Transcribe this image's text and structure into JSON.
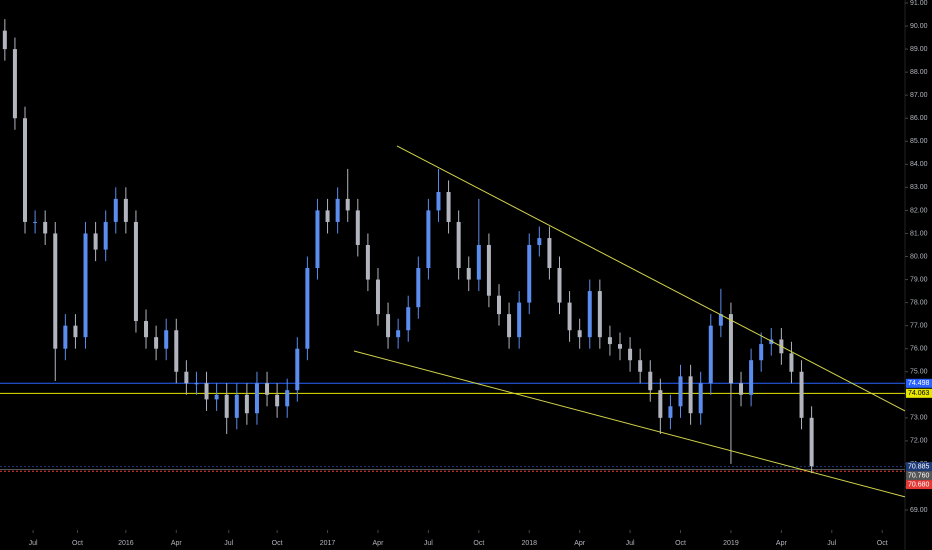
{
  "chart_data": {
    "type": "candlestick",
    "up_color": "#5b8def",
    "down_color": "#b2b5be",
    "x": [
      2015.4,
      2015.45,
      2015.5,
      2015.55,
      2015.6,
      2015.65,
      2015.7,
      2015.75,
      2015.8,
      2015.85,
      2015.9,
      2015.95,
      2016.0,
      2016.05,
      2016.1,
      2016.15,
      2016.2,
      2016.25,
      2016.3,
      2016.35,
      2016.4,
      2016.45,
      2016.5,
      2016.55,
      2016.6,
      2016.65,
      2016.7,
      2016.75,
      2016.8,
      2016.85,
      2016.9,
      2016.95,
      2017.0,
      2017.05,
      2017.1,
      2017.15,
      2017.2,
      2017.25,
      2017.3,
      2017.35,
      2017.4,
      2017.45,
      2017.5,
      2017.55,
      2017.6,
      2017.65,
      2017.7,
      2017.75,
      2017.8,
      2017.85,
      2017.9,
      2017.95,
      2018.0,
      2018.05,
      2018.1,
      2018.15,
      2018.2,
      2018.25,
      2018.3,
      2018.35,
      2018.4,
      2018.45,
      2018.5,
      2018.55,
      2018.6,
      2018.65,
      2018.7,
      2018.75,
      2018.8,
      2018.85,
      2018.9,
      2018.95,
      2019.0,
      2019.05,
      2019.1,
      2019.15,
      2019.2,
      2019.25,
      2019.3,
      2019.35,
      2019.4
    ],
    "open": [
      89.8,
      89,
      86,
      81.5,
      81.5,
      81,
      76,
      77,
      76.5,
      81,
      80.3,
      81.5,
      82.5,
      81.5,
      77.2,
      76.5,
      76,
      76.8,
      75,
      74.5,
      74.5,
      73.8,
      74,
      73,
      74,
      73.2,
      74.5,
      74,
      73.5,
      74.2,
      76,
      79.5,
      82,
      81.5,
      82.5,
      82,
      80.5,
      79,
      77.5,
      76.5,
      76.8,
      77.8,
      79.5,
      82,
      82.8,
      81.5,
      79.5,
      79,
      80.5,
      78.3,
      77.5,
      76.5,
      78,
      80.5,
      80.8,
      79.5,
      78,
      76.8,
      76.5,
      78.5,
      76.5,
      76.2,
      76,
      75.5,
      75,
      74.2,
      73,
      73.5,
      74.8,
      73.2,
      74.5,
      77,
      77.5,
      74.5,
      74,
      75.5,
      76.2,
      76.4,
      75.8,
      75,
      73
    ],
    "high": [
      90.3,
      89.5,
      86.5,
      82,
      82,
      81.5,
      77.5,
      77.5,
      81.5,
      81.5,
      82,
      83,
      83,
      82,
      77.7,
      77,
      77.3,
      77.3,
      75.5,
      75,
      75,
      74.5,
      74.5,
      74.5,
      74.5,
      75,
      75,
      74.5,
      74.7,
      76.5,
      80,
      82.5,
      82.5,
      83,
      83.8,
      82.5,
      81,
      79.5,
      78,
      77.3,
      78.3,
      80,
      82.5,
      83.8,
      83.3,
      82,
      80,
      82.5,
      81,
      78.8,
      78,
      78.5,
      81,
      81.3,
      81.3,
      80,
      78.5,
      77.3,
      79,
      79,
      77,
      76.7,
      76.5,
      76,
      75.5,
      74.7,
      74,
      75.3,
      75.3,
      75,
      77.5,
      78.6,
      78,
      75,
      76,
      76.7,
      76.9,
      76.9,
      76.3,
      75.5,
      73.5
    ],
    "low": [
      88.5,
      85.5,
      81,
      81,
      80.5,
      74.6,
      75.5,
      76,
      76,
      79.8,
      79.8,
      81,
      81,
      76.7,
      76,
      75.5,
      75.5,
      74.5,
      74,
      74,
      73.3,
      73.3,
      72.3,
      72.5,
      72.7,
      72.7,
      73.5,
      73,
      73,
      73.7,
      75.5,
      79,
      81,
      81,
      81.5,
      80,
      78.5,
      77,
      76,
      76,
      76.3,
      77.3,
      79,
      81.5,
      81,
      79,
      78.5,
      78.5,
      77.8,
      77,
      76,
      76,
      77.5,
      80,
      79,
      77.5,
      76.3,
      76,
      76,
      76,
      75.7,
      75.5,
      75,
      74.5,
      73.7,
      72.3,
      72.5,
      73,
      72.7,
      72.7,
      74,
      76.5,
      71,
      73.5,
      73.5,
      75,
      75.7,
      75.3,
      74.5,
      72.5,
      70.6
    ],
    "close": [
      89,
      86,
      81.5,
      81.5,
      81,
      76,
      77,
      76.5,
      81,
      80.3,
      81.5,
      82.5,
      81.5,
      77.2,
      76.5,
      76,
      76.8,
      75,
      74.5,
      74.5,
      73.8,
      74,
      73,
      74,
      73.2,
      74.5,
      74,
      73.5,
      74.2,
      76,
      79.5,
      82,
      81.5,
      82.5,
      82,
      80.5,
      79,
      77.5,
      76.5,
      76.8,
      77.8,
      79.5,
      82,
      82.8,
      81.5,
      79.5,
      79,
      80.5,
      78.3,
      77.5,
      76.5,
      78,
      80.5,
      80.8,
      79.5,
      78,
      76.8,
      76.5,
      78.5,
      76.5,
      76.2,
      76,
      75.5,
      75,
      74.2,
      73,
      73.5,
      74.8,
      73.2,
      74.5,
      77,
      77.5,
      74.5,
      74,
      75.5,
      76.2,
      76.4,
      75.8,
      75,
      73,
      70.9
    ],
    "xlim": [
      2015.376,
      2019.863
    ],
    "xticks": [
      {
        "value": 2015.54,
        "label": "Jul"
      },
      {
        "value": 2015.76,
        "label": "Oct"
      },
      2016,
      {
        "value": 2016.25,
        "label": "Apr"
      },
      {
        "value": 2016.51,
        "label": "Jul"
      },
      {
        "value": 2016.75,
        "label": "Oct"
      },
      2017,
      {
        "value": 2017.25,
        "label": "Apr"
      },
      {
        "value": 2017.5,
        "label": "Jul"
      },
      {
        "value": 2017.75,
        "label": "Oct"
      },
      2018,
      {
        "value": 2018.25,
        "label": "Apr"
      },
      {
        "value": 2018.5,
        "label": "Jul"
      },
      {
        "value": 2018.75,
        "label": "Oct"
      },
      2019,
      {
        "value": 2019.25,
        "label": "Apr"
      },
      {
        "value": 2019.5,
        "label": "Jul"
      },
      {
        "value": 2019.75,
        "label": "Oct"
      }
    ],
    "ylim": [
      68.35,
      91.13
    ],
    "yticks": [
      {
        "value": 69,
        "label": "69.00"
      },
      {
        "value": 70,
        "label": "70.00"
      },
      {
        "value": 71,
        "label": "71.00"
      },
      {
        "value": 72,
        "label": "72.00"
      },
      {
        "value": 73,
        "label": "73.00"
      },
      {
        "value": 74,
        "label": "74.00"
      },
      {
        "value": 75,
        "label": "75.00"
      },
      {
        "value": 76,
        "label": "76.00"
      },
      {
        "value": 77,
        "label": "77.00"
      },
      {
        "value": 78,
        "label": "78.00"
      },
      {
        "value": 79,
        "label": "79.00"
      },
      {
        "value": 80,
        "label": "80.00"
      },
      {
        "value": 81,
        "label": "81.00"
      },
      {
        "value": 82,
        "label": "82.00"
      },
      {
        "value": 83,
        "label": "83.00"
      },
      {
        "value": 84,
        "label": "84.00"
      },
      {
        "value": 85,
        "label": "85.00"
      },
      {
        "value": 86,
        "label": "86.00"
      },
      {
        "value": 87,
        "label": "87.00"
      },
      {
        "value": 88,
        "label": "88.00"
      },
      {
        "value": 89,
        "label": "89.00"
      },
      {
        "value": 90,
        "label": "90.00"
      },
      {
        "value": 91,
        "label": "91.00"
      }
    ],
    "hlines": [
      {
        "value": 74.498,
        "label": "74.498",
        "color": "#2962ff",
        "dashed": false,
        "text_color": "#ffffff"
      },
      {
        "value": 74.063,
        "label": "74.063",
        "color": "#e6e600",
        "dashed": false,
        "text_color": "#000000"
      },
      {
        "value": 70.885,
        "label": "70.885",
        "color": "#1e3a78",
        "dashed": true,
        "text_color": "#ffffff"
      },
      {
        "value": 70.76,
        "label": "70.760",
        "color": "#555555",
        "dashed": false,
        "text_color": "#ffffff"
      },
      {
        "value": 70.68,
        "label": "70.680",
        "color": "#e53935",
        "dashed": true,
        "text_color": "#ffffff"
      }
    ],
    "trendlines": [
      {
        "x": [
          2017.344,
          2019.863
        ],
        "y": [
          84.8,
          73.3
        ],
        "color": "#d4d44a"
      },
      {
        "x": [
          2017.131,
          2019.863
        ],
        "y": [
          75.9,
          69.57
        ],
        "color": "#d4d44a"
      }
    ]
  }
}
